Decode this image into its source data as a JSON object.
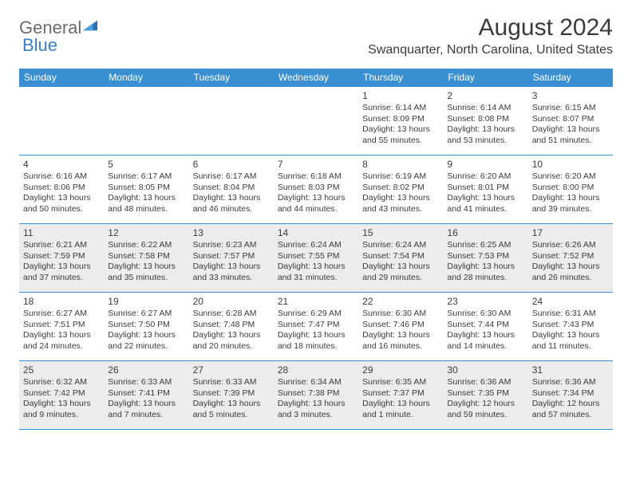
{
  "logo": {
    "text1": "General",
    "text2": "Blue"
  },
  "title": "August 2024",
  "location": "Swanquarter, North Carolina, United States",
  "colors": {
    "header_bg": "#3a8fd0",
    "header_text": "#ffffff",
    "border": "#3a8fd0",
    "shaded_bg": "#ececec",
    "text": "#3b3b3b",
    "logo_general": "#6b6b6b",
    "logo_blue": "#3a7fc4"
  },
  "dayHeaders": [
    "Sunday",
    "Monday",
    "Tuesday",
    "Wednesday",
    "Thursday",
    "Friday",
    "Saturday"
  ],
  "weeks": [
    [
      {
        "blank": true
      },
      {
        "blank": true
      },
      {
        "blank": true
      },
      {
        "blank": true,
        "border": true
      },
      {
        "day": "1",
        "sunrise": "6:14 AM",
        "sunset": "8:09 PM",
        "daylight": "13 hours and 55 minutes."
      },
      {
        "day": "2",
        "sunrise": "6:14 AM",
        "sunset": "8:08 PM",
        "daylight": "13 hours and 53 minutes."
      },
      {
        "day": "3",
        "sunrise": "6:15 AM",
        "sunset": "8:07 PM",
        "daylight": "13 hours and 51 minutes."
      }
    ],
    [
      {
        "day": "4",
        "sunrise": "6:16 AM",
        "sunset": "8:06 PM",
        "daylight": "13 hours and 50 minutes."
      },
      {
        "day": "5",
        "sunrise": "6:17 AM",
        "sunset": "8:05 PM",
        "daylight": "13 hours and 48 minutes."
      },
      {
        "day": "6",
        "sunrise": "6:17 AM",
        "sunset": "8:04 PM",
        "daylight": "13 hours and 46 minutes."
      },
      {
        "day": "7",
        "sunrise": "6:18 AM",
        "sunset": "8:03 PM",
        "daylight": "13 hours and 44 minutes."
      },
      {
        "day": "8",
        "sunrise": "6:19 AM",
        "sunset": "8:02 PM",
        "daylight": "13 hours and 43 minutes."
      },
      {
        "day": "9",
        "sunrise": "6:20 AM",
        "sunset": "8:01 PM",
        "daylight": "13 hours and 41 minutes."
      },
      {
        "day": "10",
        "sunrise": "6:20 AM",
        "sunset": "8:00 PM",
        "daylight": "13 hours and 39 minutes."
      }
    ],
    [
      {
        "day": "11",
        "sunrise": "6:21 AM",
        "sunset": "7:59 PM",
        "daylight": "13 hours and 37 minutes.",
        "shaded": true
      },
      {
        "day": "12",
        "sunrise": "6:22 AM",
        "sunset": "7:58 PM",
        "daylight": "13 hours and 35 minutes.",
        "shaded": true
      },
      {
        "day": "13",
        "sunrise": "6:23 AM",
        "sunset": "7:57 PM",
        "daylight": "13 hours and 33 minutes.",
        "shaded": true
      },
      {
        "day": "14",
        "sunrise": "6:24 AM",
        "sunset": "7:55 PM",
        "daylight": "13 hours and 31 minutes.",
        "shaded": true
      },
      {
        "day": "15",
        "sunrise": "6:24 AM",
        "sunset": "7:54 PM",
        "daylight": "13 hours and 29 minutes.",
        "shaded": true
      },
      {
        "day": "16",
        "sunrise": "6:25 AM",
        "sunset": "7:53 PM",
        "daylight": "13 hours and 28 minutes.",
        "shaded": true
      },
      {
        "day": "17",
        "sunrise": "6:26 AM",
        "sunset": "7:52 PM",
        "daylight": "13 hours and 26 minutes.",
        "shaded": true
      }
    ],
    [
      {
        "day": "18",
        "sunrise": "6:27 AM",
        "sunset": "7:51 PM",
        "daylight": "13 hours and 24 minutes."
      },
      {
        "day": "19",
        "sunrise": "6:27 AM",
        "sunset": "7:50 PM",
        "daylight": "13 hours and 22 minutes."
      },
      {
        "day": "20",
        "sunrise": "6:28 AM",
        "sunset": "7:48 PM",
        "daylight": "13 hours and 20 minutes."
      },
      {
        "day": "21",
        "sunrise": "6:29 AM",
        "sunset": "7:47 PM",
        "daylight": "13 hours and 18 minutes."
      },
      {
        "day": "22",
        "sunrise": "6:30 AM",
        "sunset": "7:46 PM",
        "daylight": "13 hours and 16 minutes."
      },
      {
        "day": "23",
        "sunrise": "6:30 AM",
        "sunset": "7:44 PM",
        "daylight": "13 hours and 14 minutes."
      },
      {
        "day": "24",
        "sunrise": "6:31 AM",
        "sunset": "7:43 PM",
        "daylight": "13 hours and 11 minutes."
      }
    ],
    [
      {
        "day": "25",
        "sunrise": "6:32 AM",
        "sunset": "7:42 PM",
        "daylight": "13 hours and 9 minutes.",
        "shaded": true
      },
      {
        "day": "26",
        "sunrise": "6:33 AM",
        "sunset": "7:41 PM",
        "daylight": "13 hours and 7 minutes.",
        "shaded": true
      },
      {
        "day": "27",
        "sunrise": "6:33 AM",
        "sunset": "7:39 PM",
        "daylight": "13 hours and 5 minutes.",
        "shaded": true
      },
      {
        "day": "28",
        "sunrise": "6:34 AM",
        "sunset": "7:38 PM",
        "daylight": "13 hours and 3 minutes.",
        "shaded": true
      },
      {
        "day": "29",
        "sunrise": "6:35 AM",
        "sunset": "7:37 PM",
        "daylight": "13 hours and 1 minute.",
        "shaded": true
      },
      {
        "day": "30",
        "sunrise": "6:36 AM",
        "sunset": "7:35 PM",
        "daylight": "12 hours and 59 minutes.",
        "shaded": true
      },
      {
        "day": "31",
        "sunrise": "6:36 AM",
        "sunset": "7:34 PM",
        "daylight": "12 hours and 57 minutes.",
        "shaded": true
      }
    ]
  ],
  "labels": {
    "sunrise": "Sunrise:",
    "sunset": "Sunset:",
    "daylight": "Daylight:"
  }
}
